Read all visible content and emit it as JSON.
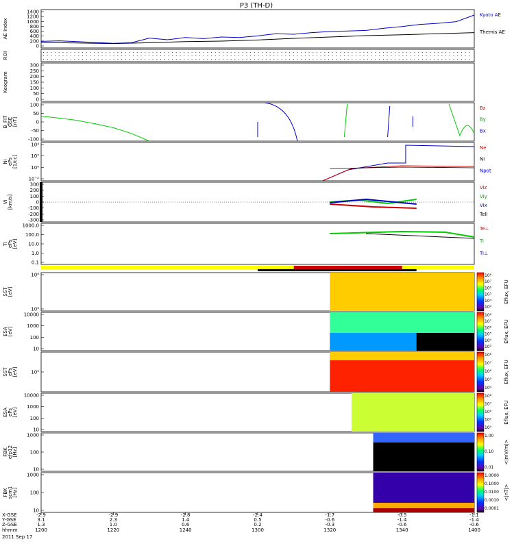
{
  "title": "P3 (TH-D)",
  "footer": {
    "row_labels": [
      "X-GSE",
      "Y-GSE",
      "Z-GSE",
      "hhmm",
      "2011 Sep 17"
    ],
    "columns": [
      {
        "x": "-2.9",
        "y": "3.1",
        "z": "1.3",
        "hhmm": "1200"
      },
      {
        "x": "-2.9",
        "y": "2.3",
        "z": "1.0",
        "hhmm": "1220"
      },
      {
        "x": "-2.8",
        "y": "1.4",
        "z": "0.6",
        "hhmm": "1240"
      },
      {
        "x": "-2.4",
        "y": "0.5",
        "z": "0.2",
        "hhmm": "1300"
      },
      {
        "x": "-1.7",
        "y": "-0.6",
        "z": "-0.3",
        "hhmm": "1320"
      },
      {
        "x": "-0.5",
        "y": "-1.4",
        "z": "-0.6",
        "hhmm": "1340"
      },
      {
        "x": "-1.1",
        "y": "-1.4",
        "z": "-0.6",
        "hhmm": "1400"
      }
    ]
  },
  "panels": [
    {
      "id": "ae",
      "ylabel": [
        "AE Index"
      ],
      "ticks": [
        "1400",
        "1200",
        "1000",
        "800",
        "600",
        "400",
        "200",
        "0"
      ],
      "legend": [
        {
          "text": "Kyoto AE",
          "color": "#0000cc"
        },
        {
          "text": "Themis AE",
          "color": "#000000"
        }
      ]
    },
    {
      "id": "roi",
      "ylabel": [
        "ROI"
      ],
      "ticks": [],
      "legend": []
    },
    {
      "id": "keogram",
      "ylabel": [
        "Keogram"
      ],
      "ticks": [
        "300",
        "250",
        "200",
        "150",
        "100",
        "50",
        "0"
      ],
      "legend": []
    },
    {
      "id": "bfit",
      "ylabel": [
        "B_FIT",
        "GSE",
        "[nT]"
      ],
      "ticks": [
        "100",
        "50",
        "0",
        "-50",
        "-100"
      ],
      "legend": [
        {
          "text": "Bz",
          "color": "#cc0000"
        },
        {
          "text": "By",
          "color": "#00aa00"
        },
        {
          "text": "Bx",
          "color": "#0000cc"
        }
      ]
    },
    {
      "id": "ni",
      "ylabel": [
        "Ni",
        "ePs",
        "[1/cc]"
      ],
      "ticks": [
        "10⁴",
        "10²",
        "10⁰",
        "10⁻²"
      ],
      "legend": [
        {
          "text": "Ne",
          "color": "#cc0000"
        },
        {
          "text": "Ni",
          "color": "#000000"
        },
        {
          "text": "Npot",
          "color": "#0000cc"
        }
      ]
    },
    {
      "id": "vi",
      "ylabel": [
        "Vi",
        "[km/s]"
      ],
      "ticks": [
        "300",
        "200",
        "100",
        "0",
        "-100",
        "-200",
        "-300"
      ],
      "legend": [
        {
          "text": "Viz",
          "color": "#cc0000"
        },
        {
          "text": "Viy",
          "color": "#00aa00"
        },
        {
          "text": "Vix",
          "color": "#0000cc"
        },
        {
          "text": "Tell",
          "color": "#000000"
        }
      ]
    },
    {
      "id": "ti",
      "ylabel": [
        "Ti",
        "ePs",
        "[eV]"
      ],
      "ticks": [
        "1000.0",
        "100.0",
        "10.0",
        "1.0",
        "0.1"
      ],
      "legend": [
        {
          "text": "Te⊥",
          "color": "#cc0000"
        },
        {
          "text": "Ti",
          "color": "#00aa00"
        },
        {
          "text": "Ti⊥",
          "color": "#0000cc"
        }
      ]
    },
    {
      "id": "sst1",
      "ylabel": [
        "SST",
        "[eV]"
      ],
      "ticks": [
        "10⁶",
        "10⁵"
      ],
      "legend": [],
      "colorbar": {
        "type": "rainbow",
        "ticks": [
          "10⁸",
          "10⁷",
          "10⁶",
          "10⁵",
          "10⁴",
          "10³"
        ],
        "label": "Eflux, EFU"
      }
    },
    {
      "id": "esa1",
      "ylabel": [
        "ESA",
        "[eV]"
      ],
      "ticks": [
        "10000",
        "1000",
        "100",
        "10"
      ],
      "legend": [],
      "colorbar": {
        "type": "rainbow",
        "ticks": [
          "10⁸",
          "10⁷",
          "10⁶",
          "10⁵",
          "10⁴",
          "10³"
        ],
        "label": "Eflux, EFU"
      }
    },
    {
      "id": "sst2",
      "ylabel": [
        "SST",
        "ePs",
        "[eV]"
      ],
      "ticks": [
        "10⁵"
      ],
      "legend": [],
      "colorbar": {
        "type": "rainbow",
        "ticks": [
          "10⁸",
          "10⁷",
          "10⁶",
          "10⁵",
          "10⁴"
        ],
        "label": "Eflux, EFU"
      }
    },
    {
      "id": "esa2",
      "ylabel": [
        "ESA",
        "ePs",
        "[eV]"
      ],
      "ticks": [
        "10000",
        "1000",
        "100",
        "10"
      ],
      "legend": [],
      "colorbar": {
        "type": "rainbow",
        "ticks": [
          "10⁸",
          "10⁷",
          "10⁶",
          "10⁵",
          "10⁴"
        ],
        "label": "Eflux, EFU"
      }
    },
    {
      "id": "fbk1",
      "ylabel": [
        "FBK",
        "efp12",
        "[Hz]"
      ],
      "ticks": [
        "1000",
        "100",
        "10"
      ],
      "legend": [],
      "colorbar": {
        "type": "rainbow",
        "ticks": [
          "1.00",
          "0.10",
          "0.01"
        ],
        "label": "<|mV/m|>"
      }
    },
    {
      "id": "fbk2",
      "ylabel": [
        "FBK",
        "scm1",
        "[Hz]"
      ],
      "ticks": [
        "1000",
        "100",
        "10"
      ],
      "legend": [],
      "colorbar": {
        "type": "rainbow",
        "ticks": [
          "1.0000",
          "0.1000",
          "0.0100",
          "0.0010",
          "0.0001"
        ],
        "label": "<|nT|>"
      }
    }
  ],
  "chart_data": {
    "type": "line",
    "title": "P3 (TH-D)",
    "x_axis": {
      "label": "hhmm",
      "range": [
        "1200",
        "1400"
      ],
      "ticks": [
        "1200",
        "1220",
        "1240",
        "1300",
        "1320",
        "1340",
        "1400"
      ]
    },
    "series": [
      {
        "name": "Kyoto AE",
        "panel": "ae",
        "x": [
          0,
          5,
          10,
          15,
          20,
          25,
          30,
          35,
          40,
          45,
          50,
          55,
          60,
          65,
          70,
          75,
          80,
          85,
          90,
          95,
          100,
          105,
          110,
          115,
          120
        ],
        "values": [
          240,
          260,
          230,
          200,
          170,
          190,
          360,
          300,
          380,
          340,
          400,
          380,
          440,
          520,
          500,
          560,
          600,
          620,
          640,
          720,
          780,
          860,
          900,
          960,
          1200
        ]
      },
      {
        "name": "Themis AE",
        "panel": "ae",
        "x": [
          0,
          10,
          20,
          30,
          40,
          50,
          60,
          70,
          80,
          90,
          100,
          110,
          120
        ],
        "values": [
          200,
          180,
          160,
          190,
          230,
          250,
          290,
          350,
          400,
          450,
          480,
          520,
          560
        ]
      },
      {
        "name": "By",
        "panel": "bfit",
        "x": [
          0,
          5,
          10,
          15,
          20,
          25,
          30
        ],
        "values": [
          30,
          20,
          8,
          -10,
          -30,
          -60,
          -100
        ]
      }
    ],
    "bar_states": [
      {
        "color": "#ffff00",
        "from": 0,
        "to": 120
      },
      {
        "color": "#cc0000",
        "from": 70,
        "to": 100
      }
    ]
  }
}
